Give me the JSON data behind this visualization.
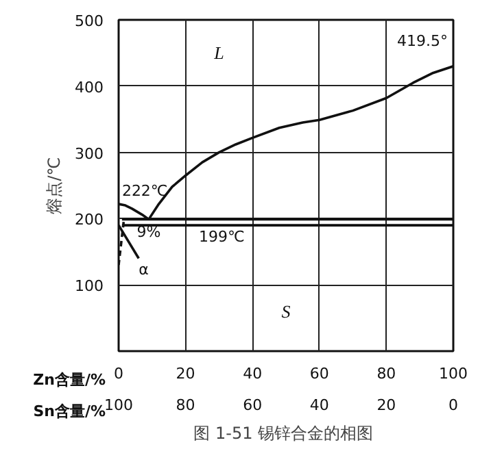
{
  "chart_data": {
    "type": "line",
    "title": "图 1-51  锡锌合金的相图",
    "ylabel": "熔点/℃",
    "xlabel": "Zn含量/%",
    "x2label": "Sn含量/%",
    "xlim": [
      0,
      100
    ],
    "xticks": [
      0,
      20,
      40,
      60,
      80,
      100
    ],
    "x2lim": [
      100,
      0
    ],
    "x2ticks": [
      100,
      80,
      60,
      40,
      20,
      0
    ],
    "ylim": [
      0,
      500
    ],
    "yticks": [
      100,
      200,
      300,
      400,
      500
    ],
    "grid": true,
    "marker": "none",
    "series": [
      {
        "color": "#111111",
        "x": [
          9,
          12,
          16,
          20,
          25,
          30,
          35,
          40,
          48,
          55,
          60,
          70,
          80,
          88,
          94,
          100
        ],
        "values": [
          199,
          222,
          248,
          265,
          285,
          300,
          312,
          322,
          337,
          345,
          349,
          363,
          382,
          405,
          420,
          430
        ]
      },
      {
        "color": "#111111",
        "x": [
          0,
          2,
          4,
          7,
          9
        ],
        "values": [
          222,
          220,
          215,
          206,
          199
        ]
      },
      {
        "color": "#111111",
        "x": [
          1,
          100
        ],
        "values": [
          199,
          199
        ]
      },
      {
        "color": "#111111",
        "x": [
          1,
          100
        ],
        "values": [
          190,
          190
        ]
      },
      {
        "color": "#111111",
        "x": [
          0,
          6
        ],
        "values": [
          190,
          140
        ]
      },
      {
        "color": "#111111",
        "x": [
          1.5,
          0
        ],
        "values": [
          195,
          130
        ],
        "line_style": "dashed"
      }
    ],
    "annotations": [
      "L",
      "S",
      {
        "text": "222℃",
        "x": 1,
        "y": 222
      },
      {
        "text": "9%",
        "x": 9,
        "y": 199
      },
      {
        "text": "199℃",
        "x": 24,
        "y": 190
      },
      {
        "text": "α",
        "x": 6,
        "y": 140
      },
      {
        "text": "419.5°",
        "x": 100,
        "y": 430
      }
    ]
  }
}
